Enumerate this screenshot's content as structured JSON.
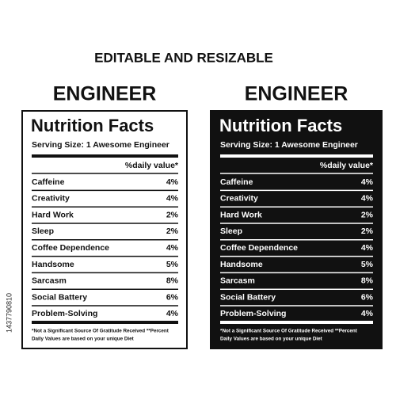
{
  "header": {
    "title": "EDITABLE AND RESIZABLE"
  },
  "side_id": "1437790810",
  "labels": [
    {
      "heading": "ENGINEER",
      "title": "Nutrition Facts",
      "serving": "Serving Size:  1 Awesome Engineer",
      "daily": "%daily value*",
      "rows": [
        [
          "Caffeine",
          "4%"
        ],
        [
          "Creativity",
          "4%"
        ],
        [
          "Hard Work",
          "2%"
        ],
        [
          "Sleep",
          "2%"
        ],
        [
          "Coffee Dependence",
          "4%"
        ],
        [
          "Handsome",
          "5%"
        ],
        [
          "Sarcasm",
          "8%"
        ],
        [
          "Social Battery",
          "6%"
        ],
        [
          "Problem-Solving",
          "4%"
        ]
      ],
      "footnote": [
        "*Not a Significant Source Of Gratitude Received **Percent",
        "Daily Values are based on your  unique Diet"
      ]
    },
    {
      "heading": "ENGINEER",
      "title": "Nutrition Facts",
      "serving": "Serving Size:  1 Awesome Engineer",
      "daily": "%daily value*",
      "rows": [
        [
          "Caffeine",
          "4%"
        ],
        [
          "Creativity",
          "4%"
        ],
        [
          "Hard Work",
          "2%"
        ],
        [
          "Sleep",
          "2%"
        ],
        [
          "Coffee Dependence",
          "4%"
        ],
        [
          "Handsome",
          "5%"
        ],
        [
          "Sarcasm",
          "8%"
        ],
        [
          "Social Battery",
          "6%"
        ],
        [
          "Problem-Solving",
          "4%"
        ]
      ],
      "footnote": [
        "*Not a Significant Source Of Gratitude Received **Percent",
        "Daily Values are based on your  unique Diet"
      ]
    }
  ]
}
